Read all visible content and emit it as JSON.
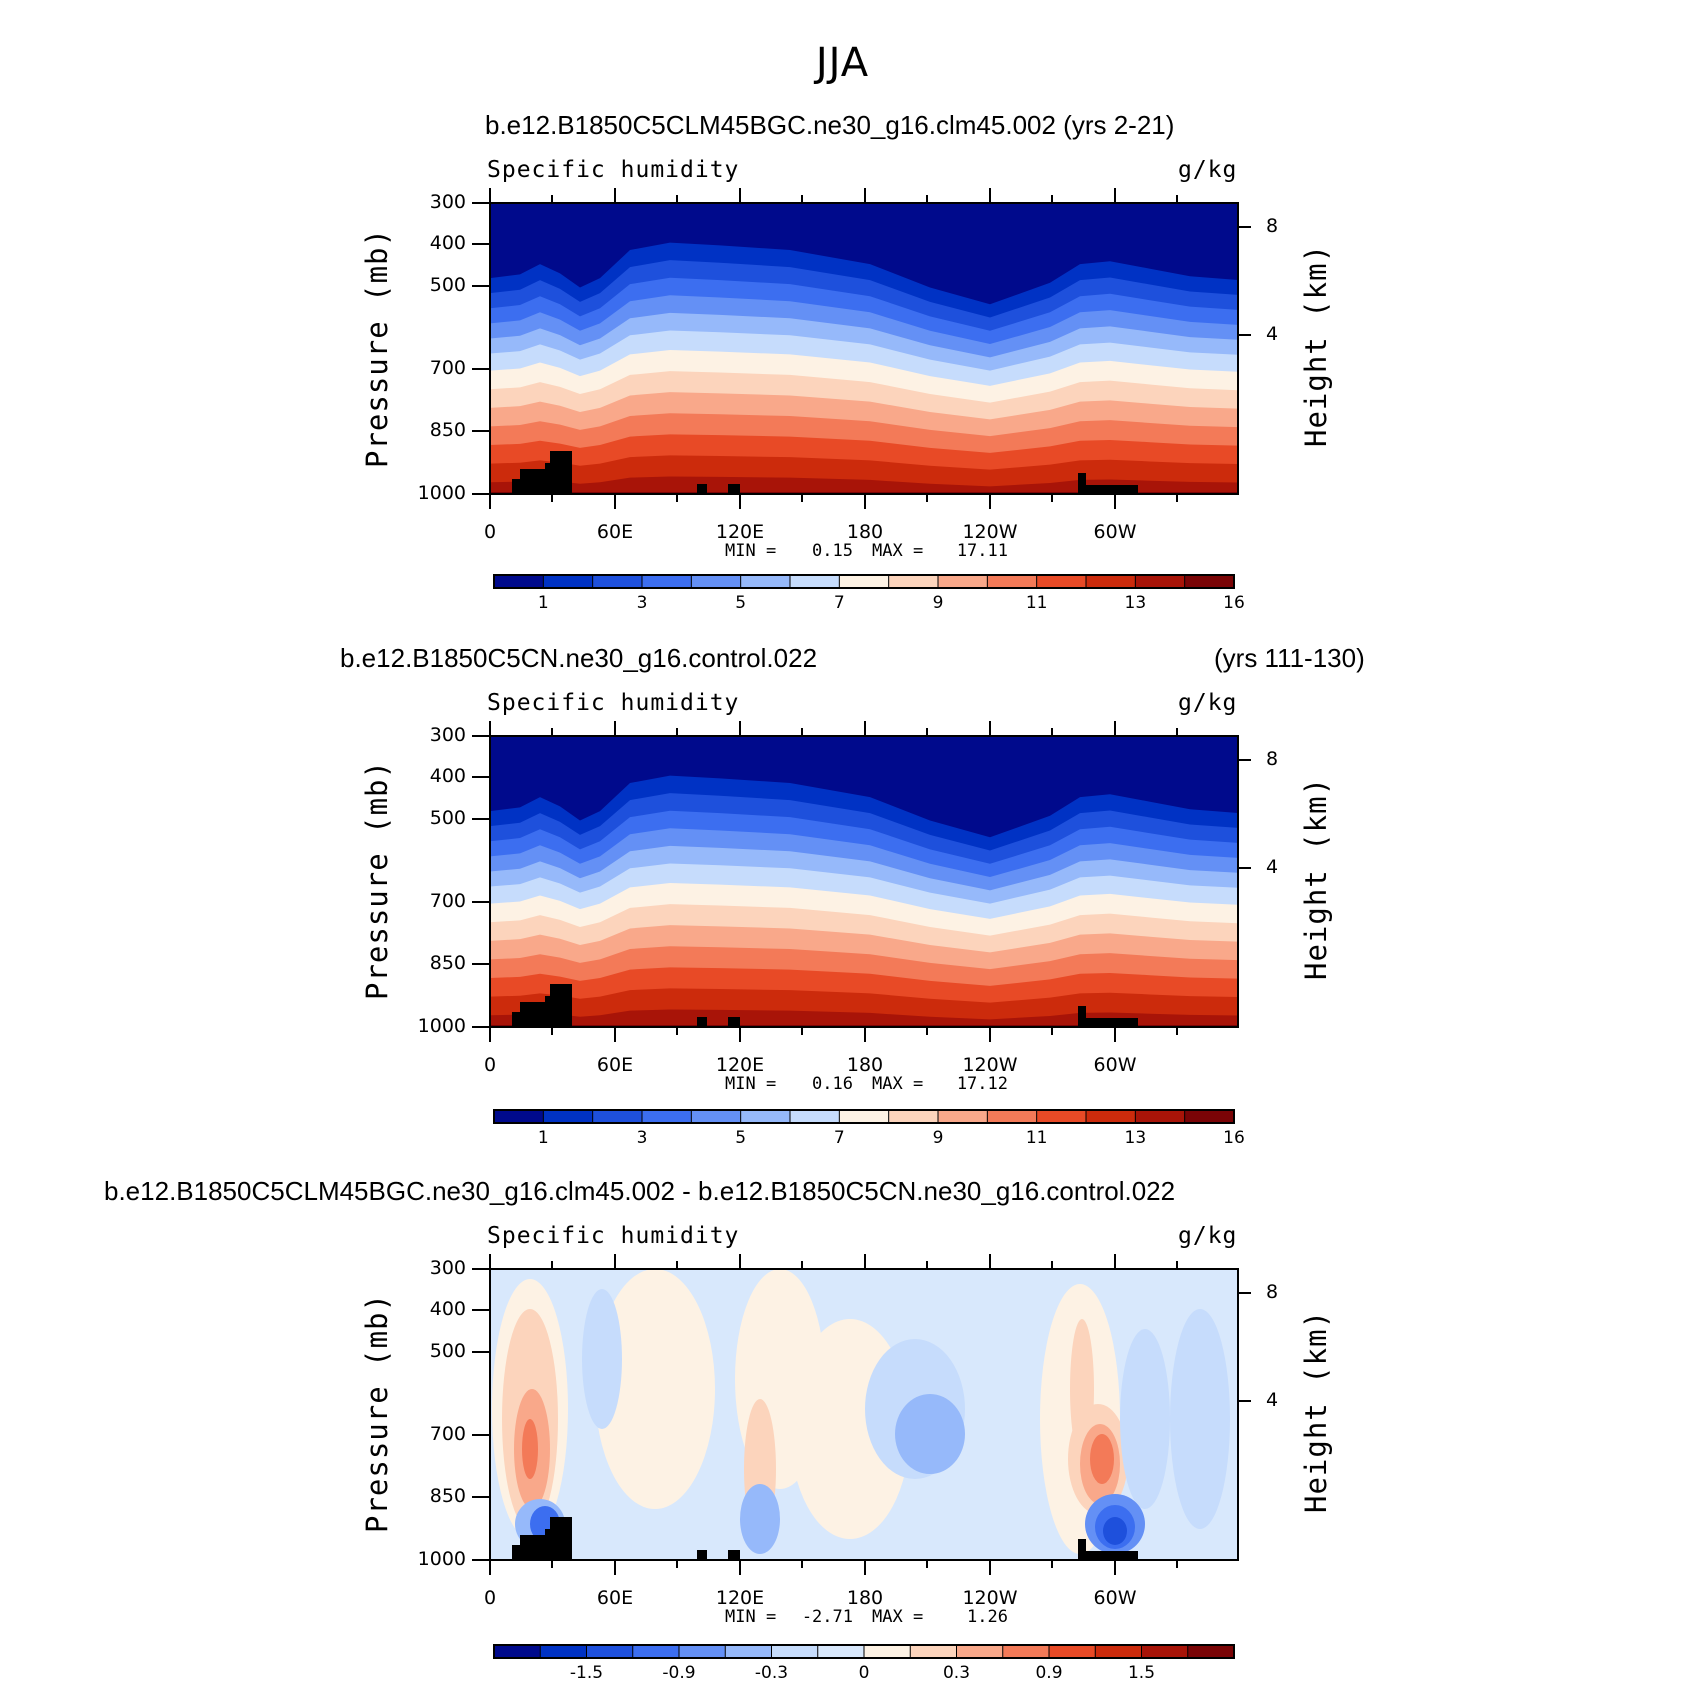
{
  "suptitle": "JJA",
  "chart_data": [
    {
      "type": "heatmap",
      "title": "b.e12.B1850C5CLM45BGC.ne30_g16.clm45.002 (yrs 2-21)",
      "left_label": "Specific humidity",
      "right_label": "g/kg",
      "ylabel": "Pressure (mb)",
      "ylabel_right": "Height (km)",
      "x_ticks": [
        "0",
        "60E",
        "120E",
        "180",
        "120W",
        "60W"
      ],
      "y_ticks": [
        "300",
        "400",
        "500",
        "700",
        "850",
        "1000"
      ],
      "y_right_ticks": [
        "8",
        "4"
      ],
      "ylim": [
        1000,
        300
      ],
      "stats": {
        "min_label": "MIN =",
        "min": "0.15",
        "max_label": "MAX =",
        "max": "17.11"
      },
      "colorbar": {
        "tick_labels": [
          "1",
          "3",
          "5",
          "7",
          "9",
          "11",
          "13",
          "16"
        ],
        "colors": [
          "#000a8c",
          "#0032c4",
          "#1e50dc",
          "#3c6ef0",
          "#6490f5",
          "#96b9fa",
          "#c6dcfc",
          "#fdf2e4",
          "#fcd4bc",
          "#f9a88a",
          "#f37a58",
          "#e84a26",
          "#cc2b0c",
          "#a81408",
          "#7a0406"
        ]
      }
    },
    {
      "type": "heatmap",
      "title": "b.e12.B1850C5CN.ne30_g16.control.022",
      "title_right": "(yrs 111-130)",
      "left_label": "Specific humidity",
      "right_label": "g/kg",
      "ylabel": "Pressure (mb)",
      "ylabel_right": "Height (km)",
      "x_ticks": [
        "0",
        "60E",
        "120E",
        "180",
        "120W",
        "60W"
      ],
      "y_ticks": [
        "300",
        "400",
        "500",
        "700",
        "850",
        "1000"
      ],
      "y_right_ticks": [
        "8",
        "4"
      ],
      "ylim": [
        1000,
        300
      ],
      "stats": {
        "min_label": "MIN =",
        "min": "0.16",
        "max_label": "MAX =",
        "max": "17.12"
      },
      "colorbar": {
        "tick_labels": [
          "1",
          "3",
          "5",
          "7",
          "9",
          "11",
          "13",
          "16"
        ],
        "colors": [
          "#000a8c",
          "#0032c4",
          "#1e50dc",
          "#3c6ef0",
          "#6490f5",
          "#96b9fa",
          "#c6dcfc",
          "#fdf2e4",
          "#fcd4bc",
          "#f9a88a",
          "#f37a58",
          "#e84a26",
          "#cc2b0c",
          "#a81408",
          "#7a0406"
        ]
      }
    },
    {
      "type": "heatmap",
      "title": "b.e12.B1850C5CLM45BGC.ne30_g16.clm45.002 - b.e12.B1850C5CN.ne30_g16.control.022",
      "left_label": "Specific humidity",
      "right_label": "g/kg",
      "ylabel": "Pressure (mb)",
      "ylabel_right": "Height (km)",
      "x_ticks": [
        "0",
        "60E",
        "120E",
        "180",
        "120W",
        "60W"
      ],
      "y_ticks": [
        "300",
        "400",
        "500",
        "700",
        "850",
        "1000"
      ],
      "y_right_ticks": [
        "8",
        "4"
      ],
      "ylim": [
        1000,
        300
      ],
      "stats": {
        "min_label": "MIN =",
        "min": "-2.71",
        "max_label": "MAX =",
        "max": "1.26"
      },
      "colorbar": {
        "tick_labels": [
          "-1.5",
          "-0.9",
          "-0.3",
          "0",
          "0.3",
          "0.9",
          "1.5"
        ],
        "colors": [
          "#000a8c",
          "#0032c4",
          "#1e50dc",
          "#3c6ef0",
          "#6490f5",
          "#96b9fa",
          "#c6dcfc",
          "#d8e8fc",
          "#fdf2e4",
          "#fcd4bc",
          "#f9a88a",
          "#f37a58",
          "#e84a26",
          "#cc2b0c",
          "#a81408",
          "#7a0406"
        ]
      }
    }
  ]
}
